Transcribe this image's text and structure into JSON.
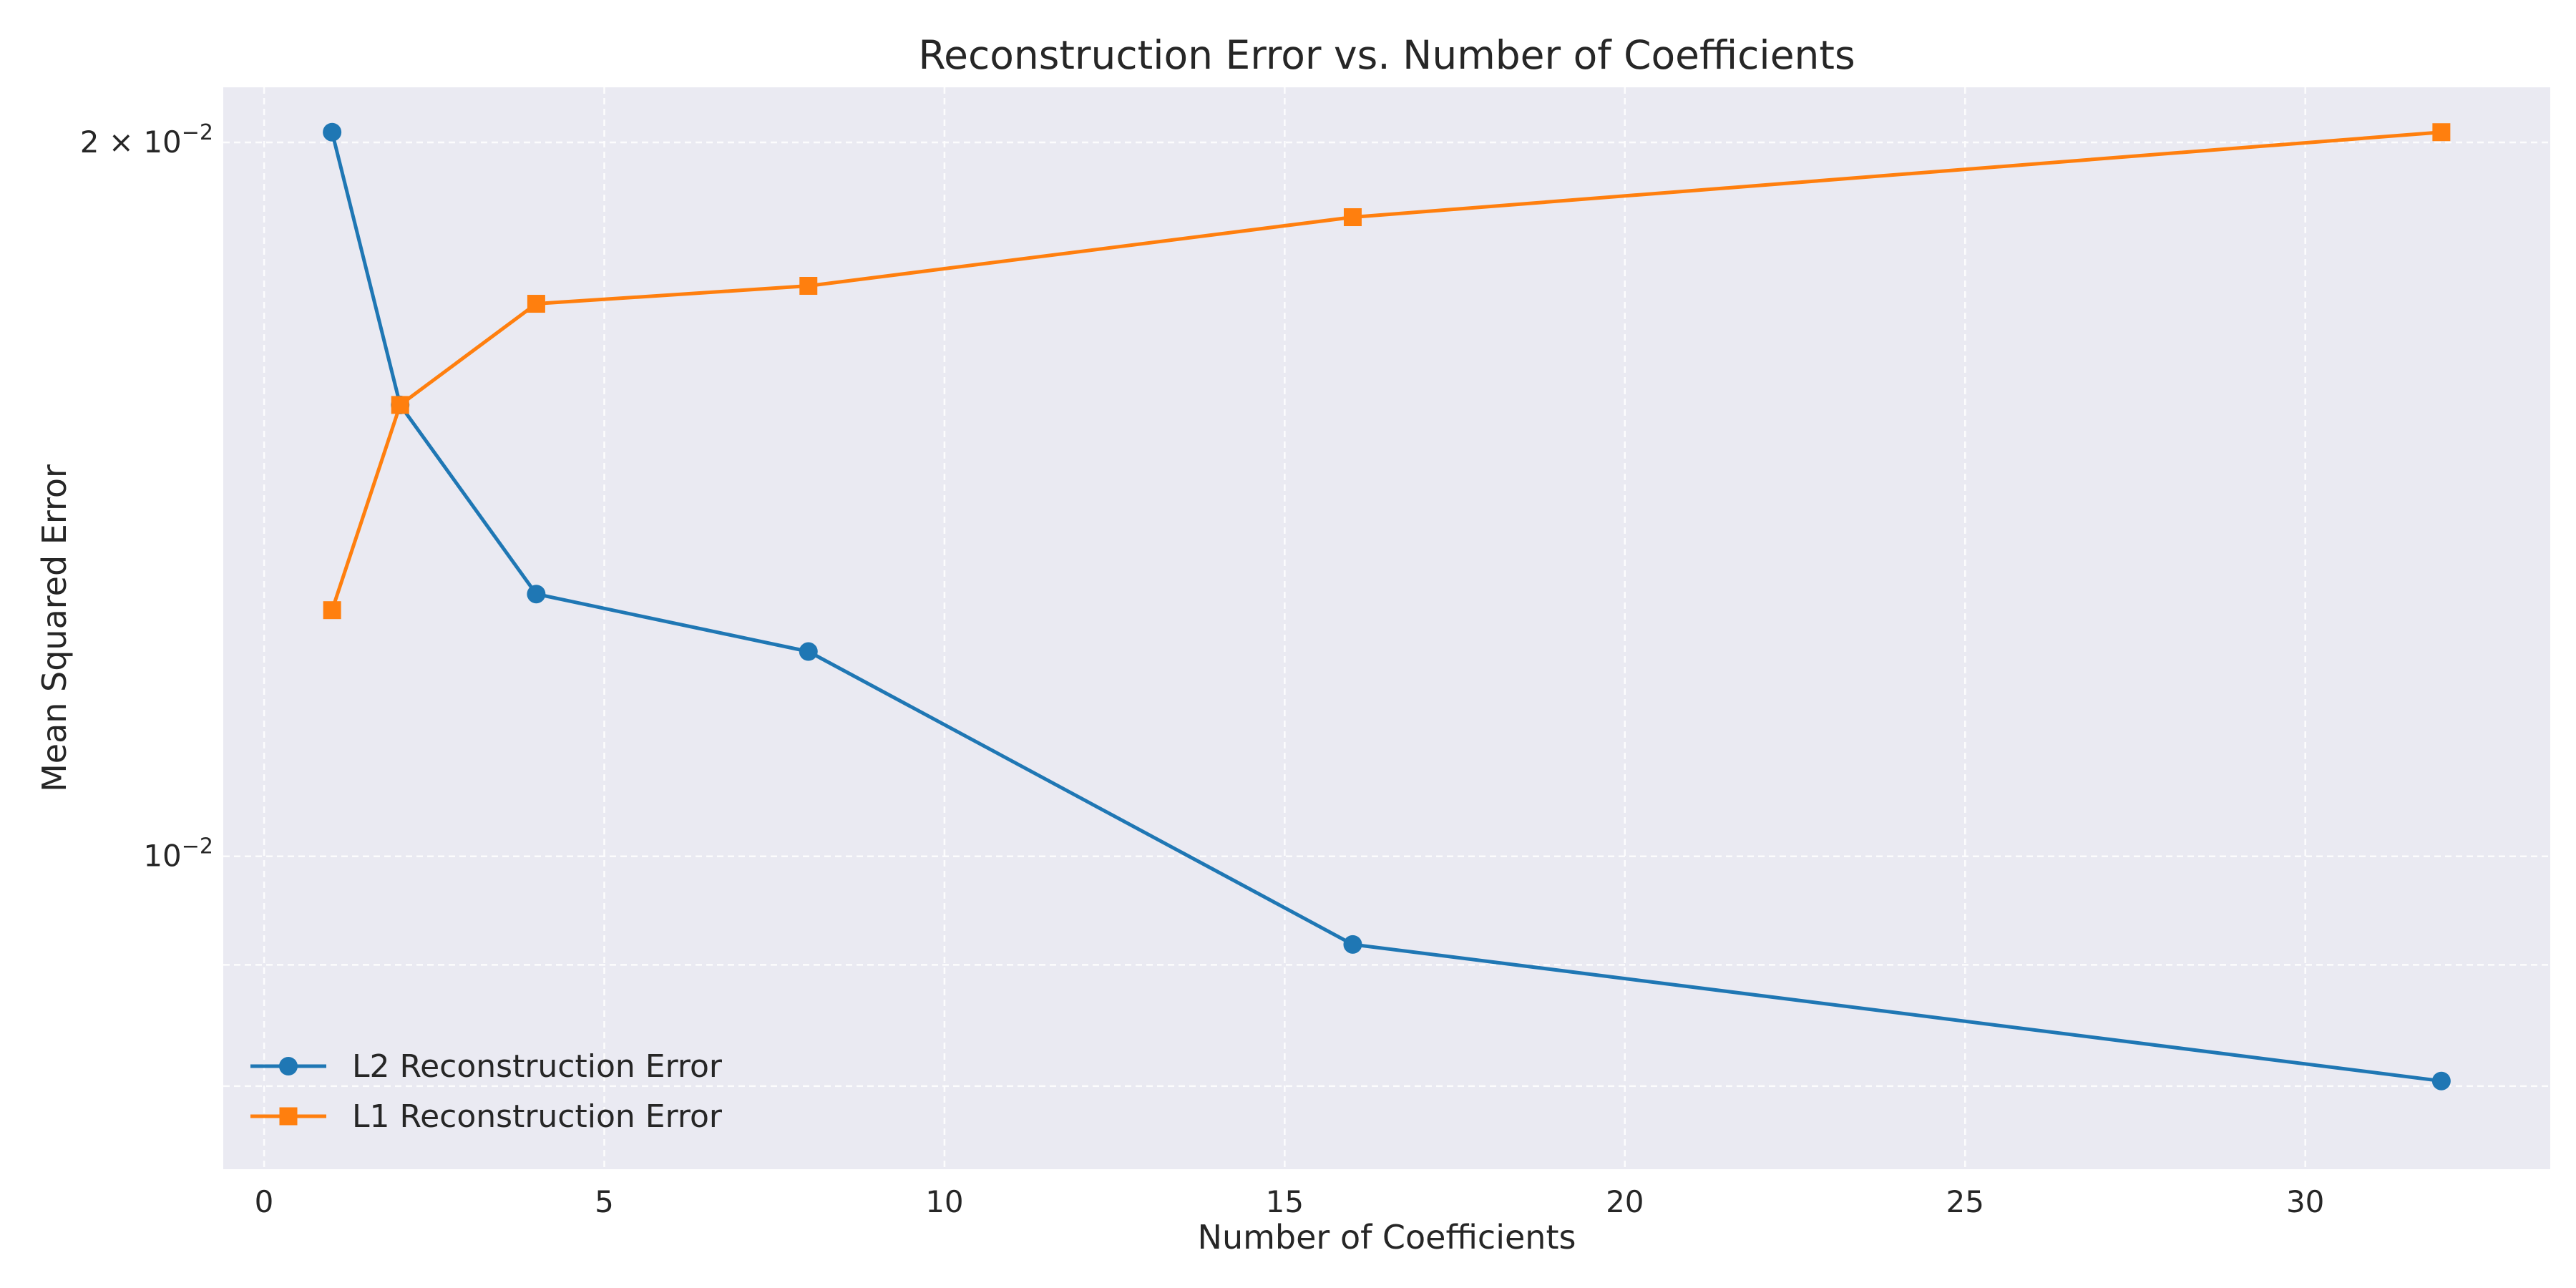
{
  "chart_data": {
    "type": "line",
    "title": "Reconstruction Error vs. Number of Coefficients",
    "xlabel": "Number of Coefficients",
    "ylabel": "Mean Squared Error",
    "y_scale": "log",
    "xlim": [
      -0.6,
      33.6
    ],
    "ylim": [
      0.00738,
      0.0211
    ],
    "x_ticks": [
      {
        "value": 0,
        "label": "0"
      },
      {
        "value": 5,
        "label": "5"
      },
      {
        "value": 10,
        "label": "10"
      },
      {
        "value": 15,
        "label": "15"
      },
      {
        "value": 20,
        "label": "20"
      },
      {
        "value": 25,
        "label": "25"
      },
      {
        "value": 30,
        "label": "30"
      }
    ],
    "y_major_ticks": [
      {
        "value": 0.01,
        "base": "10",
        "exp": "−2"
      },
      {
        "value": 0.02,
        "prefix": "2 × ",
        "base": "10",
        "exp": "−2"
      }
    ],
    "y_minor_ticks": [
      0.008,
      0.009
    ],
    "grid": true,
    "legend_position": "lower-left",
    "series": [
      {
        "name": "L2 Reconstruction Error",
        "color": "#1f77b4",
        "marker": "circle",
        "x": [
          1,
          2,
          4,
          8,
          16,
          32
        ],
        "y": [
          0.0202,
          0.0155,
          0.0129,
          0.0122,
          0.00918,
          0.00804
        ]
      },
      {
        "name": "L1 Reconstruction Error",
        "color": "#ff7f0e",
        "marker": "square",
        "x": [
          1,
          2,
          4,
          8,
          16,
          32
        ],
        "y": [
          0.0127,
          0.0155,
          0.0171,
          0.0174,
          0.0186,
          0.0202
        ]
      }
    ]
  }
}
